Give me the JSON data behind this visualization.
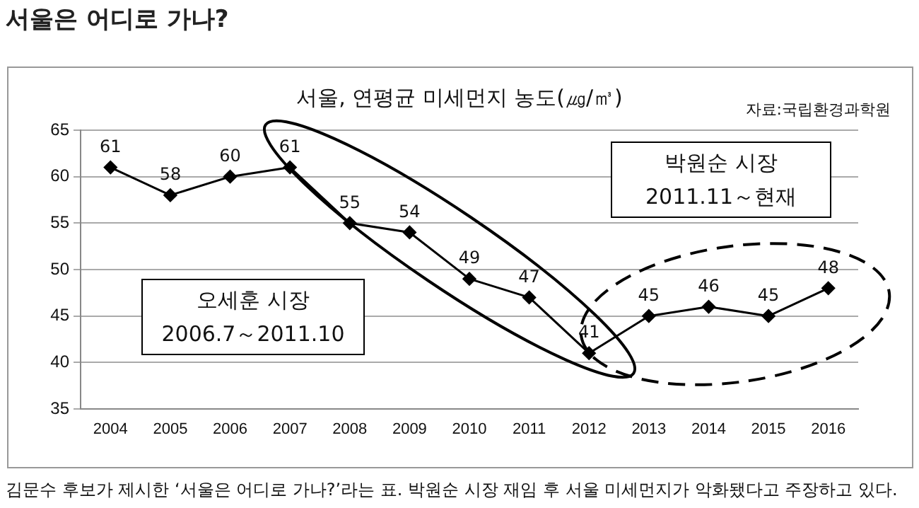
{
  "chart_data": {
    "type": "line",
    "title": "서울은 어디로 가나?",
    "subtitle": "서울, 연평균 미세먼지 농도(㎍/㎥)",
    "categories": [
      "2004",
      "2005",
      "2006",
      "2007",
      "2008",
      "2009",
      "2010",
      "2011",
      "2012",
      "2013",
      "2014",
      "2015",
      "2016"
    ],
    "series": [
      {
        "color": "#000000",
        "values": [
          61,
          58,
          60,
          61,
          55,
          54,
          49,
          47,
          41,
          45,
          46,
          45,
          48
        ]
      }
    ],
    "ylim": [
      35,
      65
    ],
    "yticks": [
      35,
      40,
      45,
      50,
      55,
      60,
      65
    ],
    "grid": "y",
    "legend": false,
    "marker": "diamond",
    "line_style": "solid",
    "data_labels": true,
    "annotations": [
      "자료:국립환경과학원",
      "박원순 시장\n2011.11～현재",
      "오세훈 시장\n2006.7～2011.10",
      "김문수 후보가 제시한 ‘서울은 어디로 가나?’라는 표. 박원순 시장 재임 후 서울 미세먼지가 악화됐다고 주장하고 있다."
    ]
  }
}
